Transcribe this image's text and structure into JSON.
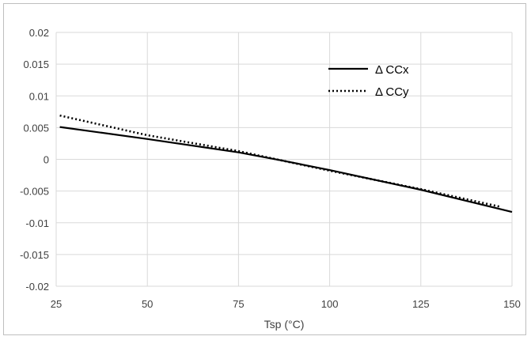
{
  "chart_data": {
    "type": "line",
    "title": "",
    "xlabel": "Tsp (°C)",
    "ylabel": "",
    "xlim": [
      25,
      150
    ],
    "ylim": [
      -0.02,
      0.02
    ],
    "x_ticks": [
      25,
      50,
      75,
      100,
      125,
      150
    ],
    "y_ticks": [
      0.02,
      0.015,
      0.01,
      0.005,
      0,
      -0.005,
      -0.01,
      -0.015,
      -0.02
    ],
    "x_tick_labels": [
      "25",
      "50",
      "75",
      "100",
      "125",
      "150"
    ],
    "y_tick_labels": [
      "0.02",
      "0.015",
      "0.01",
      "0.005",
      "0",
      "-0.005",
      "-0.01",
      "-0.015",
      "-0.02"
    ],
    "grid": true,
    "legend_position": "top-right",
    "series": [
      {
        "name": "Δ CCx",
        "style": "solid",
        "color": "#000000",
        "x": [
          26,
          50,
          75,
          87,
          100,
          125,
          150
        ],
        "y": [
          0.0051,
          0.0032,
          0.0011,
          -0.0002,
          -0.0017,
          -0.0048,
          -0.0083
        ]
      },
      {
        "name": "Δ CCy",
        "style": "dotted",
        "color": "#000000",
        "x": [
          26,
          50,
          75,
          87,
          100,
          125,
          147
        ],
        "y": [
          0.0069,
          0.0038,
          0.0013,
          -0.0002,
          -0.0018,
          -0.0047,
          -0.0075
        ]
      }
    ]
  }
}
